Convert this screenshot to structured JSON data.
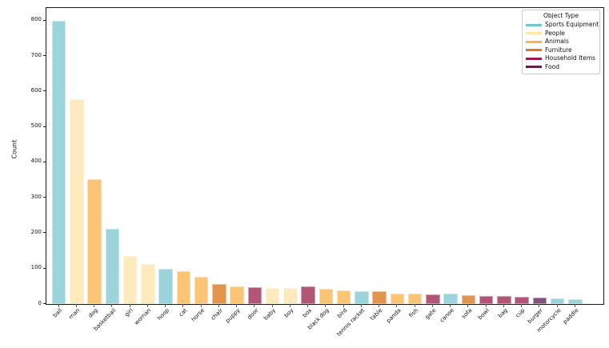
{
  "chart_data": {
    "type": "bar",
    "title": "",
    "xlabel": "",
    "ylabel": "Count",
    "ylim": [
      0,
      836
    ],
    "yticks": [
      0,
      100,
      200,
      300,
      400,
      500,
      600,
      700,
      800
    ],
    "grid": false,
    "legend": {
      "title": "Object Type",
      "position": "upper right"
    },
    "groups": [
      {
        "name": "Sports Equipment",
        "bar_color": "#9BD4DB",
        "legend_color": "#70C6CE"
      },
      {
        "name": "People",
        "bar_color": "#FDEBBE",
        "legend_color": "#FFE8A6"
      },
      {
        "name": "Animals",
        "bar_color": "#FCC475",
        "legend_color": "#FBB351"
      },
      {
        "name": "Furniture",
        "bar_color": "#E2954F",
        "legend_color": "#DC7B27"
      },
      {
        "name": "Household Items",
        "bar_color": "#B25677",
        "legend_color": "#9B1A50"
      },
      {
        "name": "Food",
        "bar_color": "#83527A",
        "legend_color": "#622149"
      }
    ],
    "bars": [
      {
        "label": "ball",
        "value": 800,
        "group": "Sports Equipment"
      },
      {
        "label": "man",
        "value": 578,
        "group": "People"
      },
      {
        "label": "dog",
        "value": 352,
        "group": "Animals"
      },
      {
        "label": "basketball",
        "value": 212,
        "group": "Sports Equipment"
      },
      {
        "label": "girl",
        "value": 136,
        "group": "People"
      },
      {
        "label": "woman",
        "value": 113,
        "group": "People"
      },
      {
        "label": "hoop",
        "value": 100,
        "group": "Sports Equipment"
      },
      {
        "label": "cat",
        "value": 93,
        "group": "Animals"
      },
      {
        "label": "horse",
        "value": 76,
        "group": "Animals"
      },
      {
        "label": "chair",
        "value": 57,
        "group": "Furniture"
      },
      {
        "label": "puppy",
        "value": 50,
        "group": "Animals"
      },
      {
        "label": "door",
        "value": 48,
        "group": "Household Items"
      },
      {
        "label": "baby",
        "value": 46,
        "group": "People"
      },
      {
        "label": "boy",
        "value": 45,
        "group": "People"
      },
      {
        "label": "box",
        "value": 50,
        "group": "Household Items"
      },
      {
        "label": "black dog",
        "value": 43,
        "group": "Animals"
      },
      {
        "label": "bird",
        "value": 38,
        "group": "Animals"
      },
      {
        "label": "tennis racket",
        "value": 36,
        "group": "Sports Equipment"
      },
      {
        "label": "table",
        "value": 37,
        "group": "Furniture"
      },
      {
        "label": "panda",
        "value": 30,
        "group": "Animals"
      },
      {
        "label": "fish",
        "value": 29,
        "group": "Animals"
      },
      {
        "label": "gate",
        "value": 27,
        "group": "Household Items"
      },
      {
        "label": "canoe",
        "value": 29,
        "group": "Sports Equipment"
      },
      {
        "label": "sofa",
        "value": 26,
        "group": "Furniture"
      },
      {
        "label": "bowl",
        "value": 23,
        "group": "Household Items"
      },
      {
        "label": "bag",
        "value": 22,
        "group": "Household Items"
      },
      {
        "label": "cup",
        "value": 21,
        "group": "Household Items"
      },
      {
        "label": "burger",
        "value": 19,
        "group": "Food"
      },
      {
        "label": "motorcycle",
        "value": 15,
        "group": "Sports Equipment"
      },
      {
        "label": "paddle",
        "value": 14,
        "group": "Sports Equipment"
      }
    ]
  }
}
